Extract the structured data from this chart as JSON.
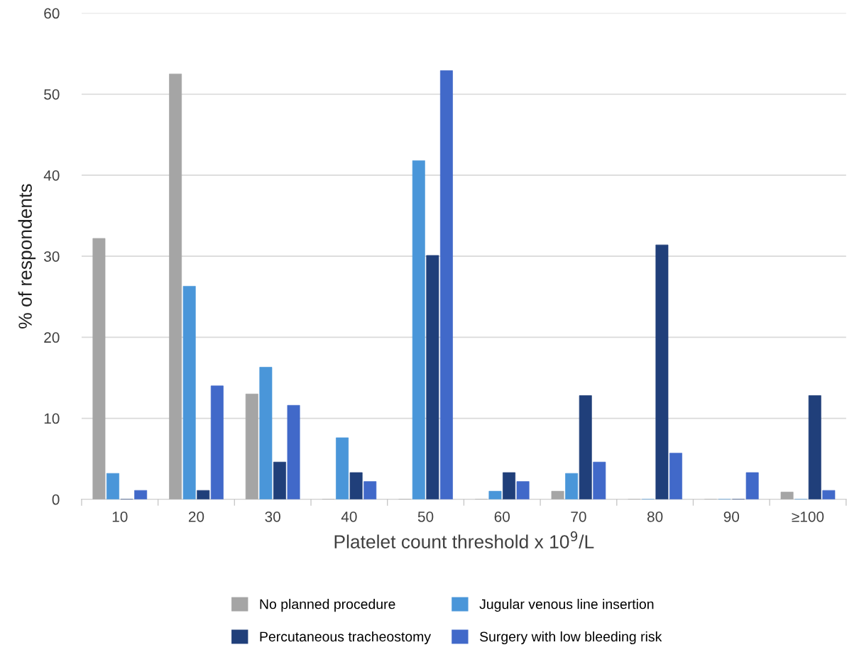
{
  "chart_data": {
    "type": "bar",
    "xlabel": "Platelet count threshold x 10$^{9}$/L",
    "ylabel": "% of respondents",
    "categories": [
      "10",
      "20",
      "30",
      "40",
      "50",
      "60",
      "70",
      "80",
      "90",
      "≥100"
    ],
    "series": [
      {
        "name": "No planned procedure",
        "color": "#a5a5a5",
        "values": [
          32.2,
          52.5,
          13.0,
          0,
          0,
          0,
          1.0,
          0,
          0,
          0.9
        ]
      },
      {
        "name": "Jugular venous line insertion",
        "color": "#4a96d9",
        "values": [
          3.2,
          26.3,
          16.3,
          7.6,
          41.8,
          1.0,
          3.2,
          0,
          0,
          0
        ]
      },
      {
        "name": "Percutaneous tracheostomy",
        "color": "#203f7a",
        "values": [
          0,
          1.1,
          4.6,
          3.3,
          30.1,
          3.3,
          12.8,
          31.4,
          0,
          12.8
        ]
      },
      {
        "name": "Surgery with low bleeding risk",
        "color": "#4169c9",
        "values": [
          1.1,
          14.0,
          11.6,
          2.2,
          52.9,
          2.2,
          4.6,
          5.7,
          3.3,
          1.1
        ]
      }
    ],
    "ylim": [
      0,
      60
    ],
    "yticks": [
      0,
      10,
      20,
      30,
      40,
      50,
      60
    ],
    "grid": "y",
    "legend": "bottom"
  }
}
